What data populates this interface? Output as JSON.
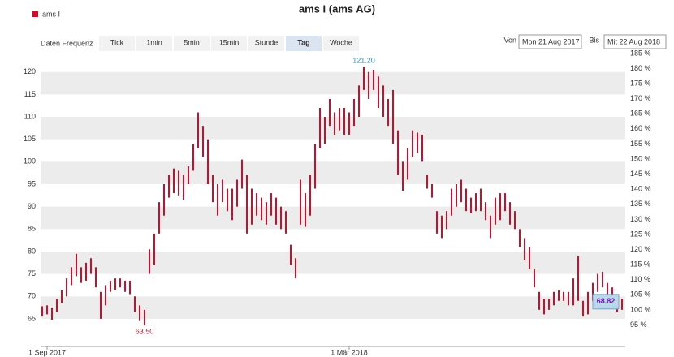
{
  "legend": {
    "label": "ams I",
    "color": "#c8102e"
  },
  "controls": {
    "frequency_label": "Daten Frequenz",
    "buttons": [
      "Tick",
      "1min",
      "5min",
      "15min",
      "Stunde",
      "Tag",
      "Woche"
    ],
    "selected": "Tag",
    "from_label": "Von",
    "from": "Mon 21 Aug 2017",
    "to_label": "Bis",
    "to": "Mit 22 Aug 2018"
  },
  "chart_data": {
    "type": "hilo",
    "title": "ams I (ams AG)",
    "color": "#c8102e",
    "ylim": [
      59.2,
      125.2
    ],
    "y2lim": [
      88.4,
      186.6
    ],
    "yticks": [
      65,
      70,
      75,
      80,
      85,
      90,
      95,
      100,
      105,
      110,
      115,
      120
    ],
    "y2ticks": [
      {
        "value": 95,
        "label": "95 %"
      },
      {
        "value": 100,
        "label": "100 %"
      },
      {
        "value": 105,
        "label": "105 %"
      },
      {
        "value": 110,
        "label": "110 %"
      },
      {
        "value": 115,
        "label": "115 %"
      },
      {
        "value": 120,
        "label": "120 %"
      },
      {
        "value": 125,
        "label": "125 %"
      },
      {
        "value": 130,
        "label": "130 %"
      },
      {
        "value": 135,
        "label": "135 %"
      },
      {
        "value": 140,
        "label": "140 %"
      },
      {
        "value": 145,
        "label": "145 %"
      },
      {
        "value": 150,
        "label": "150 %"
      },
      {
        "value": 155,
        "label": "155 %"
      },
      {
        "value": 160,
        "label": "160 %"
      },
      {
        "value": 165,
        "label": "165 %"
      },
      {
        "value": 170,
        "label": "170 %"
      },
      {
        "value": 175,
        "label": "175 %"
      },
      {
        "value": 180,
        "label": "180 %"
      },
      {
        "value": 185,
        "label": "185 %"
      }
    ],
    "xlim": [
      0,
      119
    ],
    "xticks": [
      {
        "value": 1,
        "label": "1 Sep 2017"
      },
      {
        "value": 63,
        "label": "1 Mär 2018"
      }
    ],
    "grid": "bands",
    "low": [
      65.5,
      66,
      64.8,
      66.5,
      68.5,
      70,
      72.5,
      74.5,
      73,
      73.5,
      75,
      72,
      65,
      68,
      71,
      71.5,
      72,
      71,
      70.5,
      66.5,
      64.5,
      63.5,
      75,
      77,
      84,
      88,
      92,
      93,
      92.5,
      91.5,
      95,
      98,
      103,
      101,
      95,
      91,
      88,
      91,
      89,
      87,
      90,
      94,
      84,
      86,
      88,
      87,
      86,
      88,
      86,
      85,
      84,
      77,
      74,
      86,
      85.5,
      88,
      94,
      103,
      104,
      108,
      106,
      107,
      106,
      106,
      108,
      110,
      116,
      114,
      116,
      112,
      110,
      108,
      104,
      97,
      93.5,
      96,
      101,
      102,
      100,
      94,
      92,
      84,
      83,
      85,
      88,
      90,
      91,
      89,
      88.5,
      89,
      89,
      87,
      83,
      86,
      87,
      89,
      86,
      85,
      81,
      78,
      76,
      72,
      67,
      66,
      67,
      68,
      69,
      69,
      68,
      68,
      69,
      65.5,
      66,
      69,
      71,
      72,
      70,
      68,
      66.5,
      67
    ],
    "high": [
      67.8,
      68,
      67.5,
      69.5,
      71.5,
      74,
      76.5,
      79.5,
      76.5,
      77.5,
      78.5,
      76.5,
      71,
      72.5,
      73.5,
      74,
      74,
      73.5,
      73.5,
      70,
      68,
      67,
      80.5,
      84,
      91,
      95,
      97,
      98.5,
      98,
      97,
      99,
      104,
      111,
      108,
      105,
      97,
      95,
      96,
      94,
      94,
      96,
      100.5,
      97,
      94,
      93,
      92,
      91,
      93,
      92,
      90,
      89,
      81.5,
      78.5,
      96,
      93,
      97,
      104,
      112,
      110,
      114,
      111,
      112,
      112,
      111,
      114,
      117,
      121.2,
      120,
      120.5,
      119,
      117,
      114,
      116,
      107,
      100,
      103,
      107,
      106.5,
      106,
      97,
      95,
      89,
      88,
      89,
      94,
      95,
      96,
      94,
      92,
      93,
      94,
      91,
      88,
      92,
      93,
      93,
      91,
      89,
      85,
      83,
      81,
      76,
      71,
      69.5,
      69.5,
      71,
      71.5,
      71,
      71,
      74,
      79,
      69,
      71,
      73,
      75,
      75.5,
      73,
      72,
      70,
      69.5
    ],
    "max_label": {
      "text": "121.20",
      "value": 121.2
    },
    "min_label": {
      "text": "63.50",
      "value": 63.5
    },
    "last_label": {
      "text": "68.82",
      "value": 68.82
    }
  }
}
